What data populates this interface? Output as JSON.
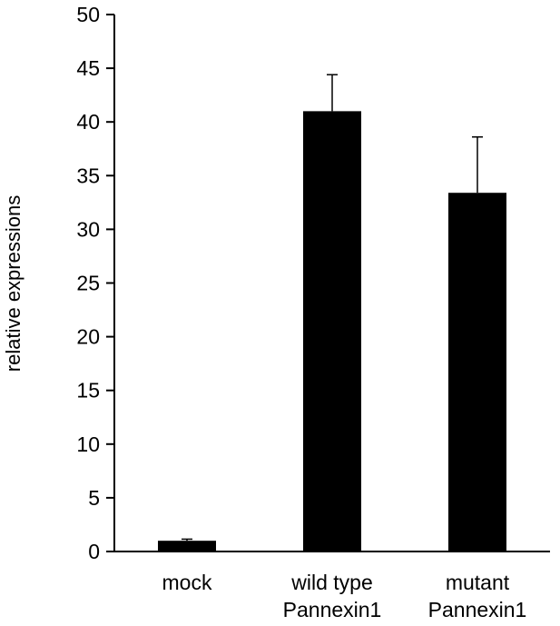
{
  "chart_data": {
    "type": "bar",
    "title": "",
    "xlabel": "",
    "ylabel": "relative expressions",
    "ylim": [
      0,
      50
    ],
    "ytick_step": 5,
    "grid": false,
    "legend": "none",
    "categories": [
      [
        "mock"
      ],
      [
        "wild type",
        "Pannexin1"
      ],
      [
        "mutant",
        "Pannexin1"
      ]
    ],
    "values": [
      1.0,
      41.0,
      33.4
    ],
    "error_upper": [
      0.15,
      3.4,
      5.2
    ],
    "bar_color": "#000000"
  }
}
